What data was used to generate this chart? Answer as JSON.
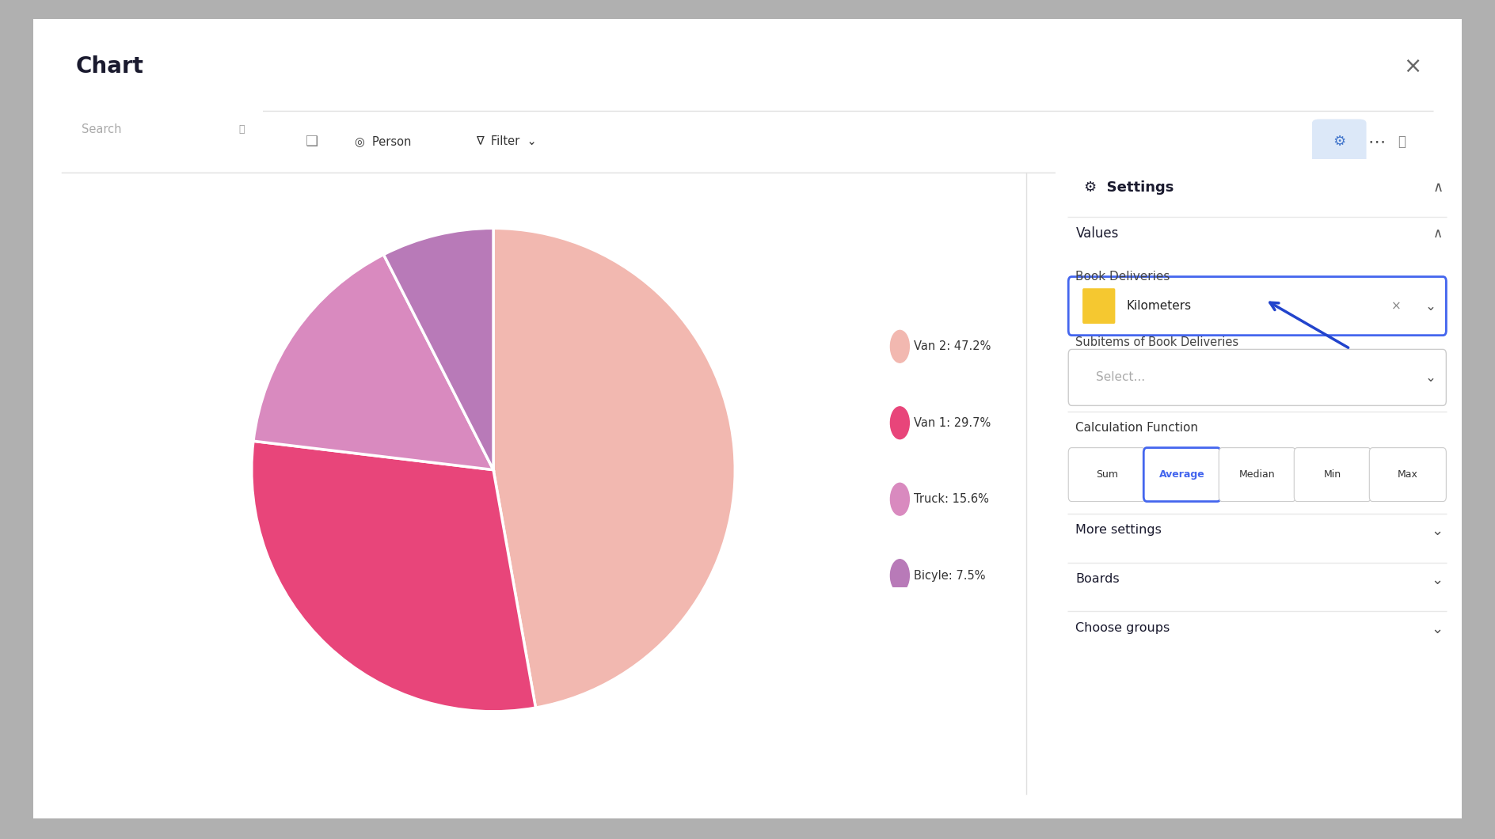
{
  "title": "Chart",
  "labels": [
    "Van 2",
    "Van 1",
    "Truck",
    "Bicyle"
  ],
  "values": [
    47.2,
    29.7,
    15.6,
    7.5
  ],
  "colors": [
    "#f2b8b0",
    "#e8457a",
    "#d98abf",
    "#b87ab8"
  ],
  "legend_labels": [
    "Van 2: 47.2%",
    "Van 1: 29.7%",
    "Truck: 15.6%",
    "Bicyle: 7.5%"
  ],
  "legend_colors": [
    "#f2b8b0",
    "#e8457a",
    "#d98abf",
    "#b87ab8"
  ],
  "outer_bg": "#b0b0b0",
  "card_bg": "#ffffff",
  "settings_btn_labels": [
    "Sum",
    "Average",
    "Median",
    "Min",
    "Max"
  ],
  "settings_btn_active": "Average",
  "pie_startangle": 90,
  "pie_counterclock": false
}
